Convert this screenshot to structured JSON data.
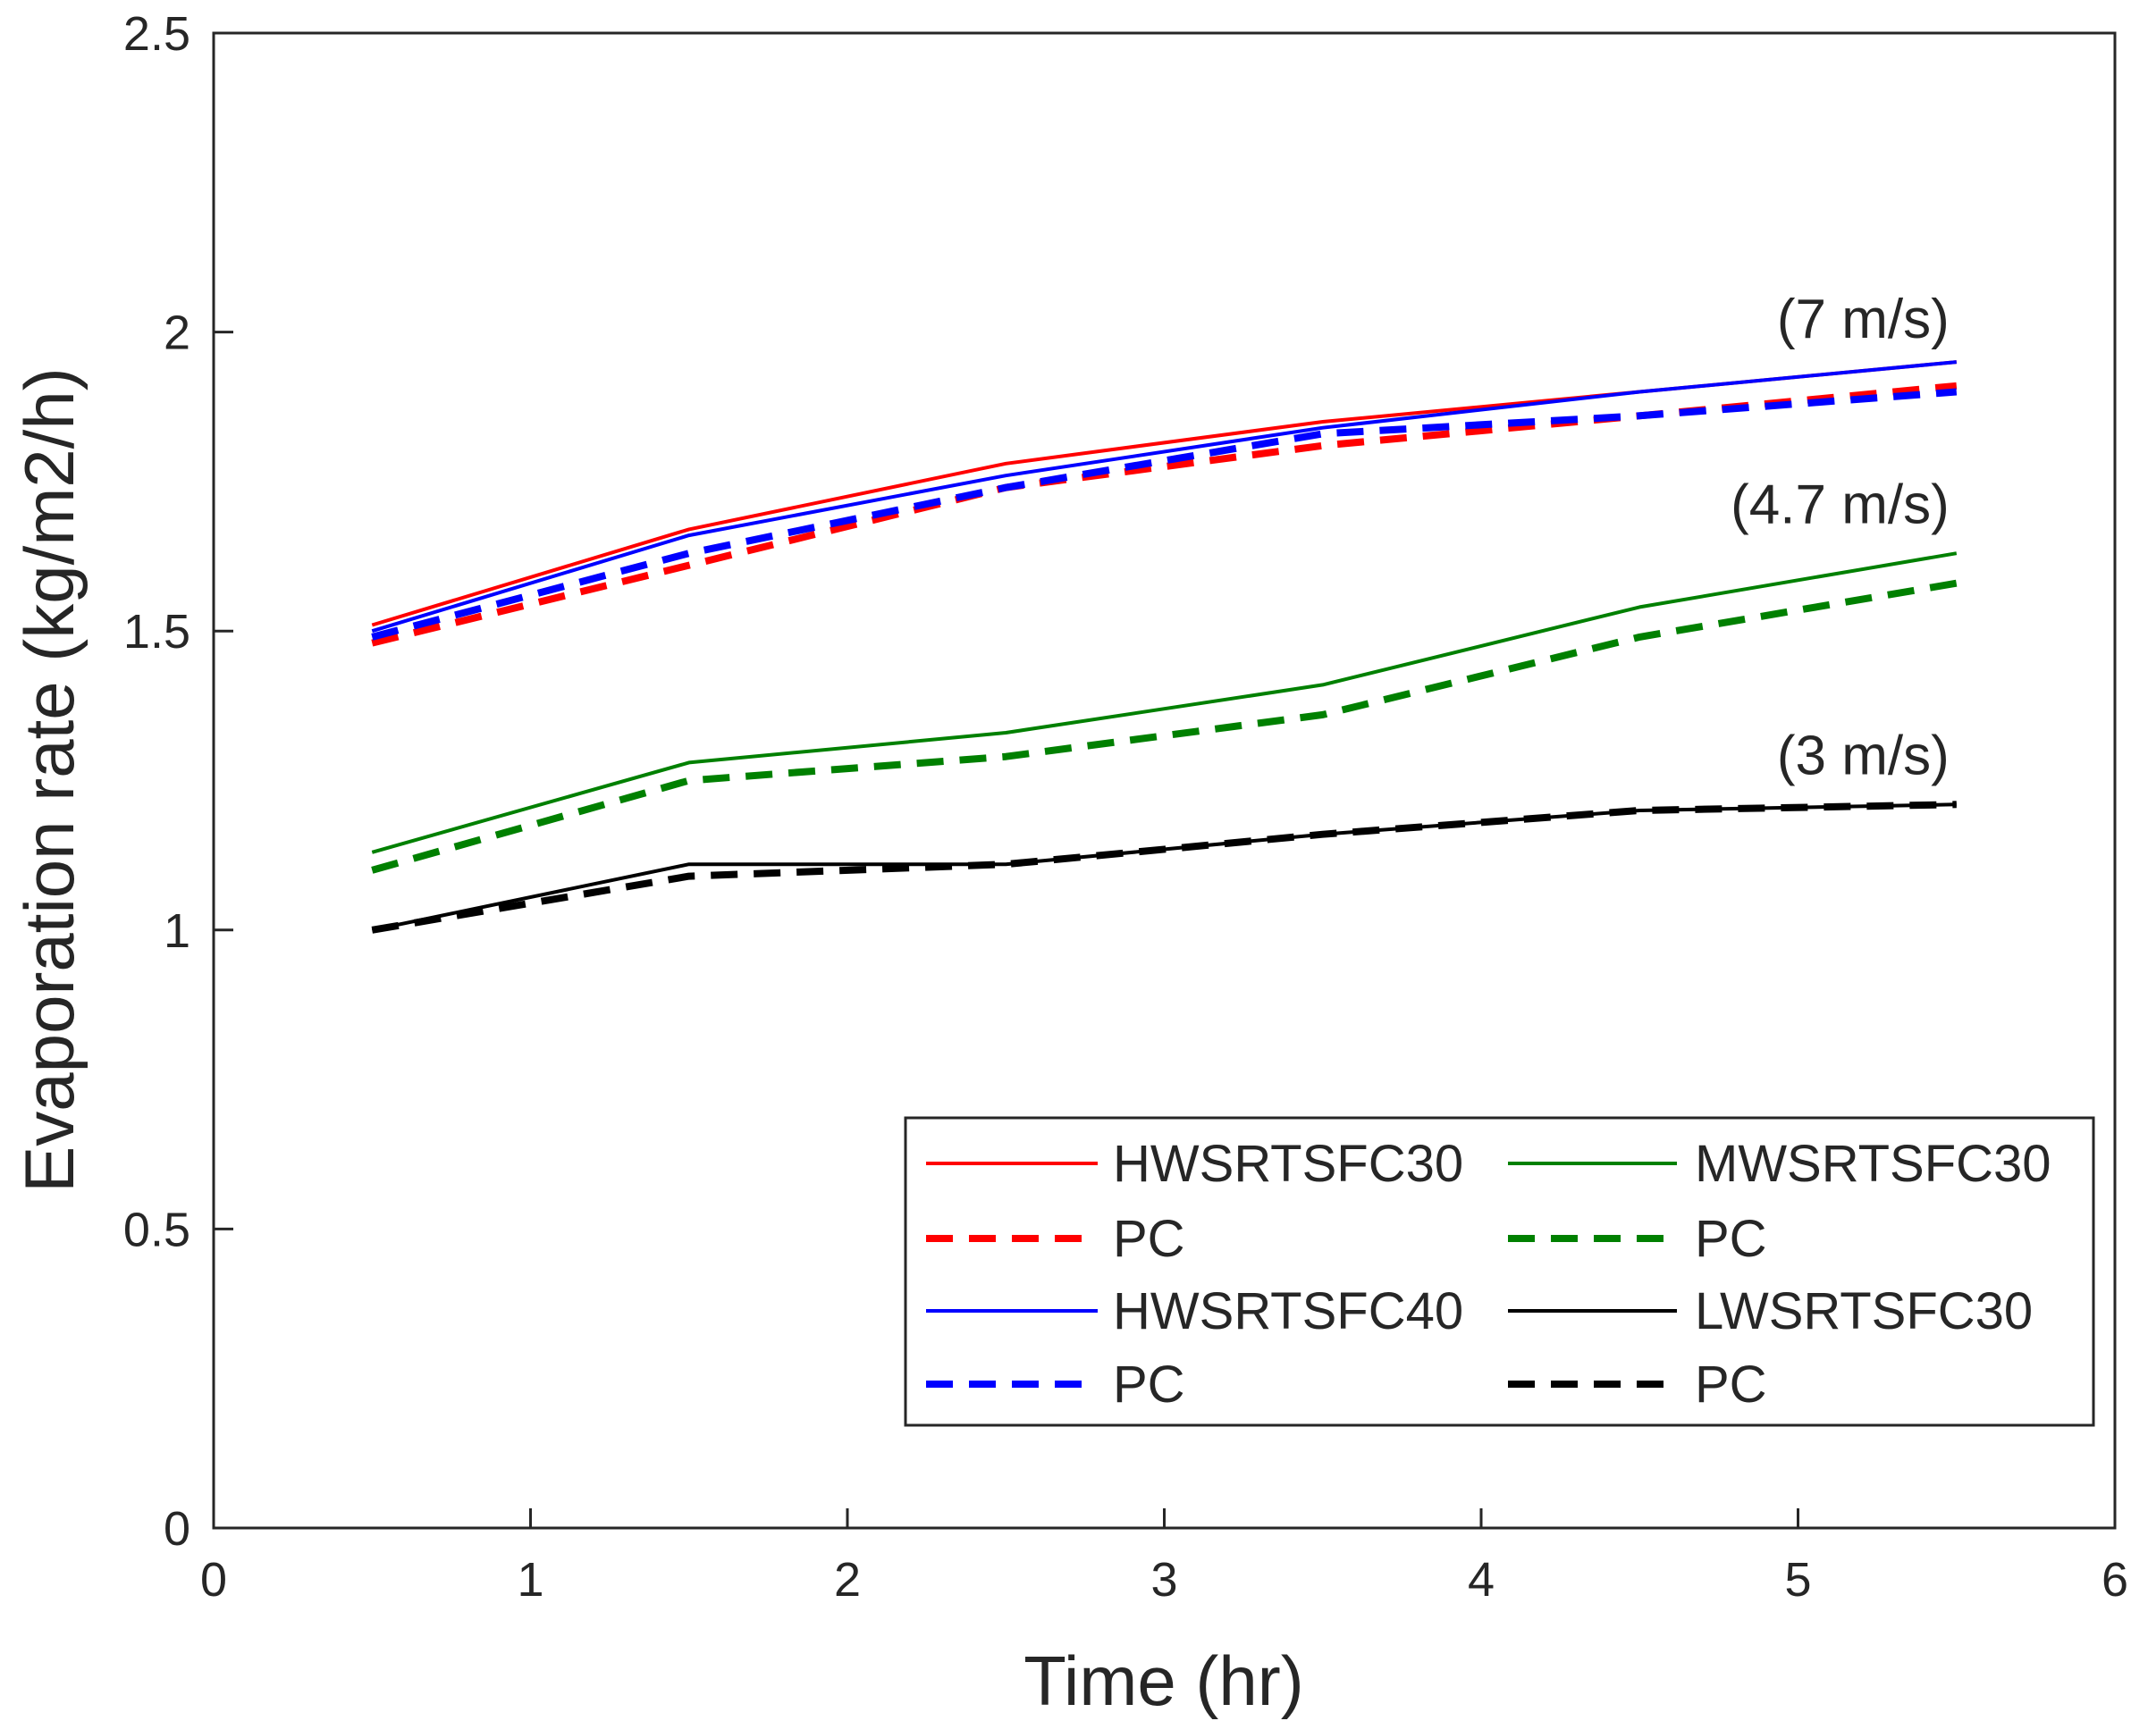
{
  "chart_data": {
    "type": "line",
    "title": "",
    "xlabel": "Time (hr)",
    "ylabel": "Evaporation rate (kg/m2/h)",
    "xlim": [
      0,
      6
    ],
    "ylim": [
      0,
      2.5
    ],
    "xticks": [
      0,
      1,
      2,
      3,
      4,
      5,
      6
    ],
    "yticks": [
      0,
      0.5,
      1,
      1.5,
      2,
      2.5
    ],
    "xtick_labels": [
      "0",
      "1",
      "2",
      "3",
      "4",
      "5",
      "6"
    ],
    "ytick_labels": [
      "0",
      "0.5",
      "1",
      "1.5",
      "2",
      "2.5"
    ],
    "grid": false,
    "legend_position": "bottom-right",
    "x": [
      0.5,
      1.5,
      2.5,
      3.5,
      4.5,
      5.5
    ],
    "series": [
      {
        "name": "HWSRTSFC30",
        "color": "#ff0000",
        "style": "solid",
        "values": [
          1.51,
          1.67,
          1.78,
          1.85,
          1.9,
          1.95
        ]
      },
      {
        "name": "PC",
        "color": "#ff0000",
        "style": "dashed",
        "values": [
          1.48,
          1.61,
          1.74,
          1.81,
          1.86,
          1.91
        ]
      },
      {
        "name": "HWSRTSFC40",
        "color": "#0000ff",
        "style": "solid",
        "values": [
          1.5,
          1.66,
          1.76,
          1.84,
          1.9,
          1.95
        ]
      },
      {
        "name": "PC",
        "color": "#0000ff",
        "style": "dashed",
        "values": [
          1.49,
          1.63,
          1.74,
          1.83,
          1.86,
          1.9
        ]
      },
      {
        "name": "MWSRTSFC30",
        "color": "#008000",
        "style": "solid",
        "values": [
          1.13,
          1.28,
          1.33,
          1.41,
          1.54,
          1.63
        ]
      },
      {
        "name": "PC",
        "color": "#008000",
        "style": "dashed",
        "values": [
          1.1,
          1.25,
          1.29,
          1.36,
          1.49,
          1.58
        ]
      },
      {
        "name": "LWSRTSFC30",
        "color": "#000000",
        "style": "solid",
        "values": [
          1.0,
          1.11,
          1.11,
          1.16,
          1.2,
          1.21
        ]
      },
      {
        "name": "PC",
        "color": "#000000",
        "style": "dashed",
        "values": [
          1.0,
          1.09,
          1.11,
          1.16,
          1.2,
          1.21
        ]
      }
    ],
    "legend_order": [
      0,
      1,
      2,
      3,
      4,
      5,
      6,
      7
    ],
    "annotations": [
      {
        "text": "(7 m/s)",
        "x": 5.5,
        "y": 2.02
      },
      {
        "text": "(4.7 m/s)",
        "x": 5.5,
        "y": 1.71
      },
      {
        "text": "(3 m/s)",
        "x": 5.5,
        "y": 1.29
      }
    ]
  }
}
